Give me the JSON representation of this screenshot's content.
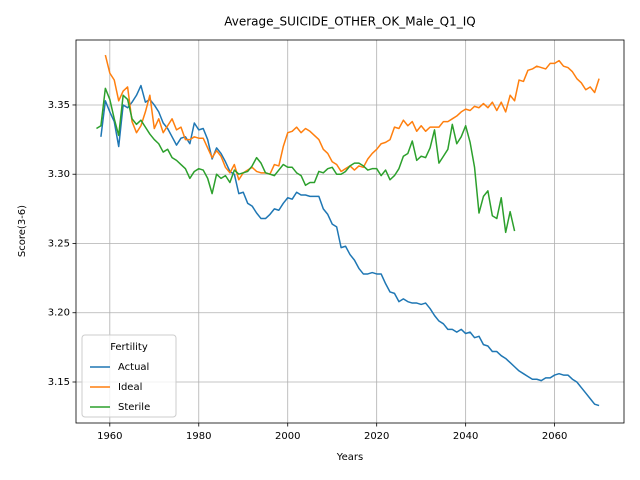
{
  "chart_data": {
    "type": "line",
    "title": "Average_SUICIDE_OTHER_OK_Male_Q1_IQ",
    "xlabel": "Years",
    "ylabel": "Score(3-6)",
    "x": [
      1957,
      1958,
      1959,
      1960,
      1961,
      1962,
      1963,
      1964,
      1965,
      1966,
      1967,
      1968,
      1969,
      1970,
      1971,
      1972,
      1973,
      1974,
      1975,
      1976,
      1977,
      1978,
      1979,
      1980,
      1981,
      1982,
      1983,
      1984,
      1985,
      1986,
      1987,
      1988,
      1989,
      1990,
      1991,
      1992,
      1993,
      1994,
      1995,
      1996,
      1997,
      1998,
      1999,
      2000,
      2001,
      2002,
      2003,
      2004,
      2005,
      2006,
      2007,
      2008,
      2009,
      2010,
      2011,
      2012,
      2013,
      2014,
      2015,
      2016,
      2017,
      2018,
      2019,
      2020,
      2021,
      2022,
      2023,
      2024,
      2025,
      2026,
      2027,
      2028,
      2029,
      2030,
      2031,
      2032,
      2033,
      2034,
      2035,
      2036,
      2037,
      2038,
      2039,
      2040,
      2041,
      2042,
      2043,
      2044,
      2045,
      2046,
      2047,
      2048,
      2049,
      2050,
      2051,
      2052,
      2053,
      2054,
      2055,
      2056,
      2057,
      2058,
      2059,
      2060,
      2061,
      2062,
      2063,
      2064,
      2065,
      2066,
      2067,
      2068,
      2069,
      2070
    ],
    "series": [
      {
        "name": "Actual",
        "color": "#1f77b4",
        "values": [
          null,
          3.327,
          3.353,
          3.345,
          3.338,
          3.32,
          3.35,
          3.348,
          3.352,
          3.357,
          3.364,
          3.352,
          3.354,
          3.35,
          3.345,
          3.337,
          3.333,
          3.327,
          3.321,
          3.326,
          3.327,
          3.322,
          3.337,
          3.332,
          3.333,
          3.325,
          3.311,
          3.319,
          3.315,
          3.309,
          3.302,
          3.3,
          3.286,
          3.287,
          3.279,
          3.277,
          3.272,
          3.268,
          3.268,
          3.271,
          3.275,
          3.274,
          3.279,
          3.283,
          3.282,
          3.287,
          3.285,
          3.285,
          3.284,
          3.284,
          3.284,
          3.275,
          3.271,
          3.264,
          3.262,
          3.247,
          3.248,
          3.242,
          3.238,
          3.232,
          3.228,
          3.228,
          3.229,
          3.228,
          3.228,
          3.221,
          3.215,
          3.214,
          3.208,
          3.21,
          3.208,
          3.207,
          3.207,
          3.206,
          3.207,
          3.203,
          3.198,
          3.194,
          3.192,
          3.188,
          3.188,
          3.186,
          3.188,
          3.185,
          3.186,
          3.182,
          3.183,
          3.177,
          3.176,
          3.172,
          3.172,
          3.169,
          3.167,
          3.164,
          3.161,
          3.158,
          3.156,
          3.154,
          3.152,
          3.152,
          3.151,
          3.153,
          3.153,
          3.155,
          3.156,
          3.155,
          3.155,
          3.152,
          3.15,
          3.146,
          3.142,
          3.138,
          3.134,
          3.133
        ]
      },
      {
        "name": "Ideal",
        "color": "#ff7f0e",
        "values": [
          null,
          null,
          3.386,
          3.373,
          3.368,
          3.353,
          3.36,
          3.363,
          3.338,
          3.33,
          3.335,
          3.345,
          3.357,
          3.333,
          3.34,
          3.33,
          3.335,
          3.34,
          3.332,
          3.334,
          3.325,
          3.325,
          3.327,
          3.326,
          3.326,
          3.319,
          3.312,
          3.317,
          3.313,
          3.305,
          3.301,
          3.307,
          3.296,
          3.301,
          3.303,
          3.305,
          3.302,
          3.301,
          3.301,
          3.3,
          3.307,
          3.306,
          3.32,
          3.33,
          3.331,
          3.334,
          3.33,
          3.333,
          3.331,
          3.328,
          3.325,
          3.318,
          3.315,
          3.309,
          3.307,
          3.302,
          3.304,
          3.306,
          3.303,
          3.306,
          3.305,
          3.311,
          3.315,
          3.318,
          3.322,
          3.323,
          3.325,
          3.334,
          3.333,
          3.339,
          3.335,
          3.338,
          3.331,
          3.335,
          3.331,
          3.334,
          3.334,
          3.334,
          3.338,
          3.338,
          3.34,
          3.342,
          3.345,
          3.347,
          3.346,
          3.349,
          3.348,
          3.351,
          3.348,
          3.352,
          3.346,
          3.352,
          3.345,
          3.357,
          3.353,
          3.368,
          3.367,
          3.375,
          3.376,
          3.378,
          3.377,
          3.376,
          3.38,
          3.38,
          3.382,
          3.378,
          3.377,
          3.374,
          3.369,
          3.366,
          3.361,
          3.363,
          3.359,
          3.369
        ]
      },
      {
        "name": "Sterile",
        "color": "#2ca02c",
        "values": [
          3.333,
          3.335,
          3.362,
          3.354,
          3.34,
          3.328,
          3.357,
          3.354,
          3.34,
          3.336,
          3.339,
          3.334,
          3.329,
          3.325,
          3.322,
          3.316,
          3.318,
          3.312,
          3.31,
          3.307,
          3.304,
          3.297,
          3.302,
          3.304,
          3.303,
          3.297,
          3.286,
          3.3,
          3.297,
          3.299,
          3.294,
          3.303,
          3.3,
          3.301,
          3.302,
          3.306,
          3.312,
          3.308,
          3.301,
          3.3,
          3.299,
          3.303,
          3.307,
          3.305,
          3.305,
          3.301,
          3.299,
          3.292,
          3.294,
          3.294,
          3.302,
          3.301,
          3.304,
          3.305,
          3.3,
          3.3,
          3.302,
          3.306,
          3.308,
          3.308,
          3.306,
          3.303,
          3.304,
          3.304,
          3.299,
          3.303,
          3.296,
          3.299,
          3.304,
          3.313,
          3.315,
          3.324,
          3.31,
          3.313,
          3.312,
          3.319,
          3.332,
          3.308,
          3.313,
          3.318,
          3.336,
          3.322,
          3.327,
          3.335,
          3.323,
          3.305,
          3.272,
          3.284,
          3.288,
          3.27,
          3.268,
          3.283,
          3.258,
          3.273,
          3.259,
          null,
          null,
          null,
          null,
          null,
          null,
          null,
          null,
          null,
          null,
          null,
          null,
          null,
          null,
          null,
          null,
          null,
          null,
          null
        ]
      }
    ],
    "xlim": [
      1952.4,
      2075.6
    ],
    "ylim": [
      3.1204,
      3.3969
    ],
    "xticks": [
      1960,
      1980,
      2000,
      2020,
      2040,
      2060
    ],
    "yticks": [
      3.15,
      {
        "value": 3.2,
        "label": "3.20"
      },
      3.25,
      {
        "value": 3.3,
        "label": "3.30"
      },
      3.35
    ],
    "grid": true,
    "legend": {
      "title": "Fertility",
      "loc": "lower left"
    }
  }
}
